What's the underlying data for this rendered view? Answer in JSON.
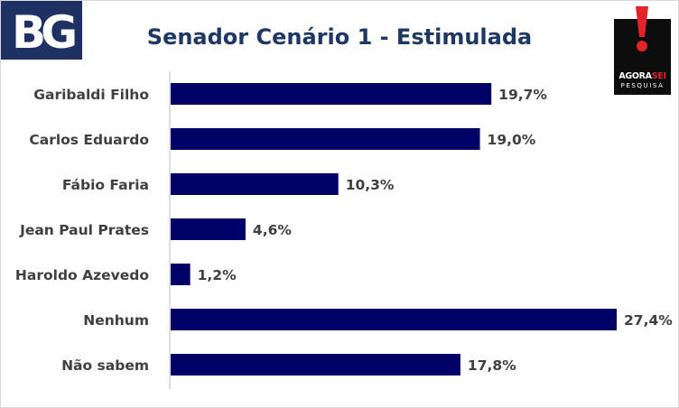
{
  "header": {
    "logo_left_text": "BG",
    "title": "Senador Cenário 1 - Estimulada",
    "brand_word_1": "AGORA",
    "brand_word_2": "SEI",
    "brand_word_3": "PESQUISA"
  },
  "colors": {
    "bar": "#000066",
    "title": "#1f3863",
    "logo_bg": "#1f3163",
    "brand_red": "#e2232a"
  },
  "chart_data": {
    "type": "bar",
    "orientation": "horizontal",
    "title": "Senador Cenário 1 - Estimulada",
    "categories": [
      "Garibaldi Filho",
      "Carlos Eduardo",
      "Fábio Faria",
      "Jean Paul Prates",
      "Haroldo Azevedo",
      "Nenhum",
      "Não sabem"
    ],
    "values": [
      19.7,
      19.0,
      10.3,
      4.6,
      1.2,
      27.4,
      17.8
    ],
    "data_labels": [
      "19,7%",
      "19,0%",
      "10,3%",
      "4,6%",
      "1,2%",
      "27,4%",
      "17,8%"
    ],
    "xlim": [
      0,
      27.4
    ],
    "xlabel": "",
    "ylabel": "",
    "grid": false,
    "legend": "none"
  }
}
